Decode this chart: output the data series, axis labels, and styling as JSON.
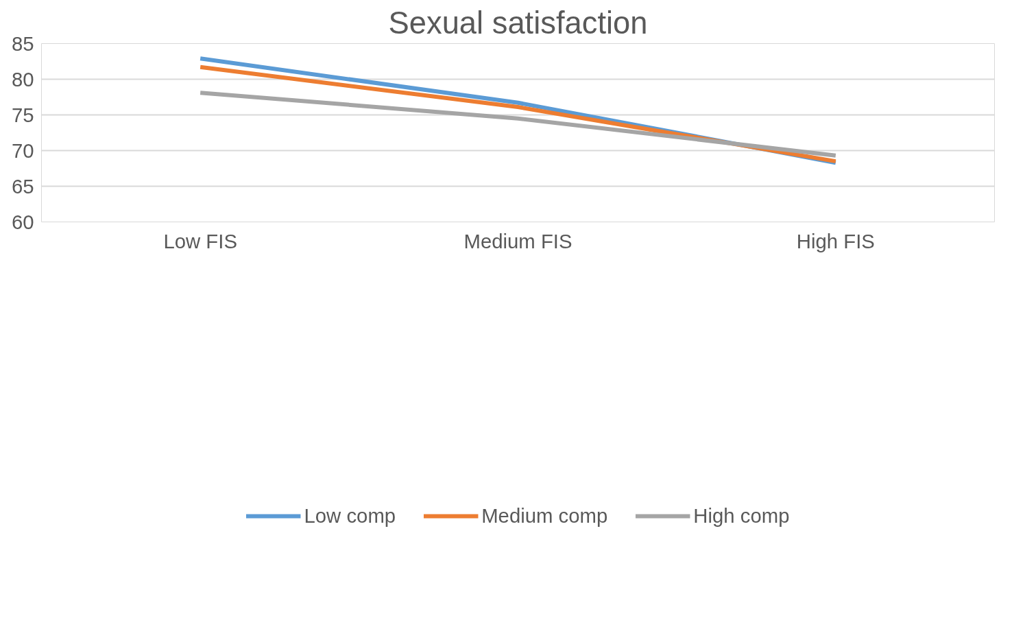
{
  "chart_data": {
    "type": "line",
    "title": "Sexual satisfaction",
    "categories": [
      "Low FIS",
      "Medium FIS",
      "High FIS"
    ],
    "series": [
      {
        "name": "Low comp",
        "color": "#5b9bd5",
        "values": [
          82.9,
          76.7,
          68.3
        ]
      },
      {
        "name": "Medium comp",
        "color": "#ed7d31",
        "values": [
          81.7,
          76.1,
          68.5
        ]
      },
      {
        "name": "High comp",
        "color": "#a5a5a5",
        "values": [
          78.1,
          74.5,
          69.3
        ]
      }
    ],
    "ylim": [
      60,
      85
    ],
    "yticks": [
      60,
      65,
      70,
      75,
      80,
      85
    ],
    "grid": "y",
    "legend": "bottom",
    "marker": "none",
    "line_style": "solid"
  }
}
